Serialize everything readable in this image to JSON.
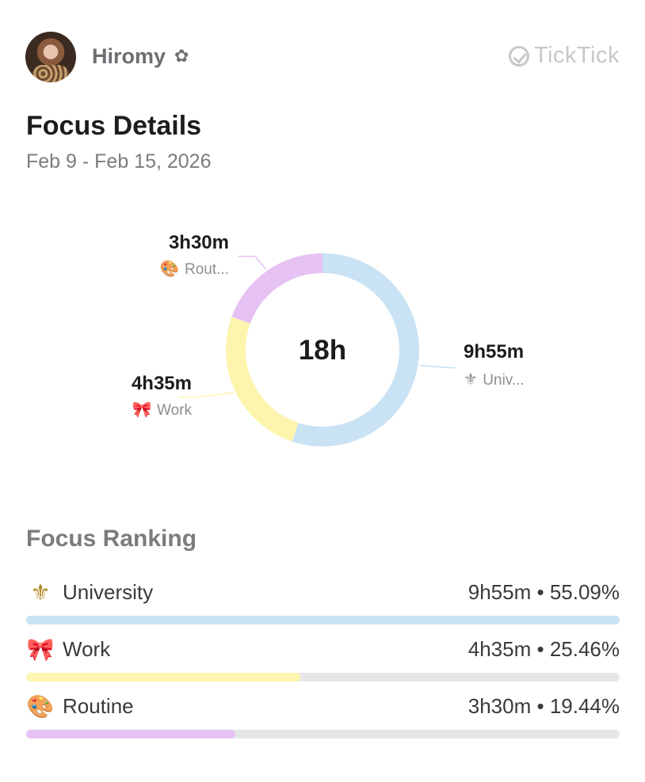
{
  "header": {
    "username": "Hiromy",
    "username_icon": "flower-icon",
    "brand": "TickTick"
  },
  "page": {
    "title": "Focus Details",
    "date_range": "Feb 9 - Feb 15, 2026"
  },
  "chart_data": {
    "type": "donut",
    "center_label": "18h",
    "slices": [
      {
        "name": "University",
        "short_label": "Univ...",
        "display_value": "9h55m",
        "minutes": 595,
        "percent": 55.09,
        "color": "#c9e2f4",
        "icon": "fleur-de-lis-icon",
        "glyph": "⚜"
      },
      {
        "name": "Work",
        "short_label": "Work",
        "display_value": "4h35m",
        "minutes": 275,
        "percent": 25.46,
        "color": "#fdf5ae",
        "icon": "ribbon-icon",
        "glyph": "🎀"
      },
      {
        "name": "Routine",
        "short_label": "Rout...",
        "display_value": "3h30m",
        "minutes": 210,
        "percent": 19.44,
        "color": "#e6c2f3",
        "icon": "palette-icon",
        "glyph": "🎨"
      }
    ]
  },
  "ranking": {
    "title": "Focus Ranking",
    "items": [
      {
        "name": "University",
        "stat": "9h55m • 55.09%",
        "fill": 1.0,
        "color": "#c9e2f4",
        "glyph": "⚜",
        "icon": "fleur-de-lis-icon"
      },
      {
        "name": "Work",
        "stat": "4h35m • 25.46%",
        "fill": 0.462,
        "color": "#fdf5ae",
        "glyph": "🎀",
        "icon": "ribbon-icon"
      },
      {
        "name": "Routine",
        "stat": "3h30m • 19.44%",
        "fill": 0.353,
        "color": "#e6c2f3",
        "glyph": "🎨",
        "icon": "palette-icon"
      }
    ]
  }
}
